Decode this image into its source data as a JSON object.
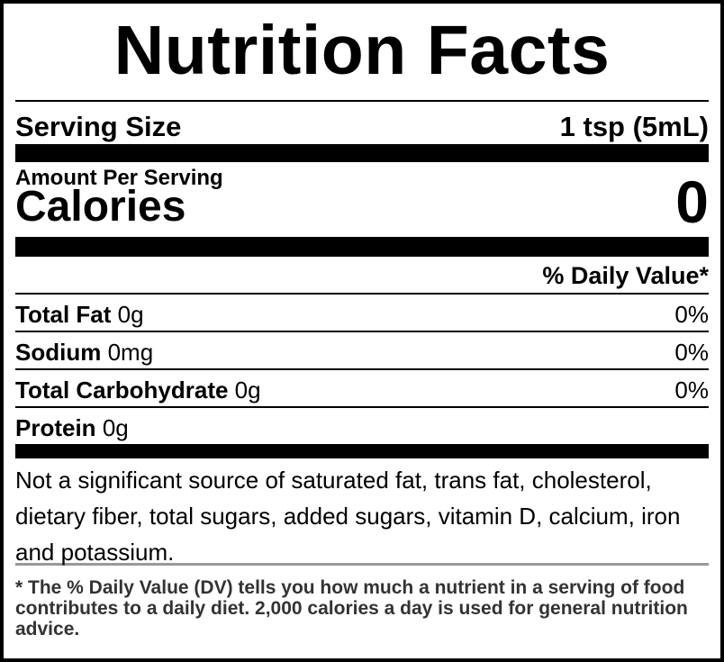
{
  "title": "Nutrition Facts",
  "serving": {
    "label": "Serving Size",
    "value": "1 tsp (5mL)"
  },
  "amount_per_serving": "Amount Per Serving",
  "calories": {
    "label": "Calories",
    "value": "0"
  },
  "daily_value_header": "% Daily Value*",
  "nutrients": [
    {
      "name": "Total Fat",
      "amount": "0g",
      "dv": "0%"
    },
    {
      "name": "Sodium",
      "amount": "0mg",
      "dv": "0%"
    },
    {
      "name": "Total Carbohydrate",
      "amount": "0g",
      "dv": "0%"
    },
    {
      "name": "Protein",
      "amount": "0g",
      "dv": ""
    }
  ],
  "note": "Not a significant source of saturated fat, trans fat, cholesterol, dietary fiber, total sugars, added sugars, vitamin D, calcium, iron and potassium.",
  "footnote": "* The % Daily Value (DV) tells you how much a nutrient in a serving of food contributes to a daily diet. 2,000 calories a day is used for general nutrition advice."
}
